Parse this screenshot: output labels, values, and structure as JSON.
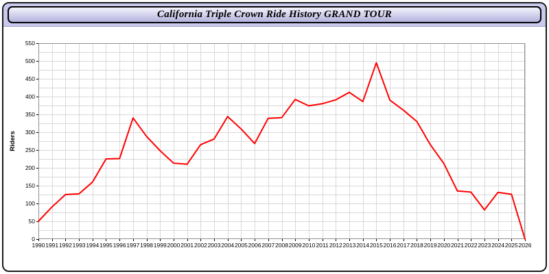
{
  "title": "California Triple Crown Ride History GRAND TOUR",
  "colors": {
    "strip_background": "#c9c9ee",
    "titlebar_gradient_top": "#f4f4fd",
    "titlebar_gradient_bottom": "#b2b2dd",
    "line": "#ff0000",
    "grid": "#d8d8d8",
    "plot_border": "#8f8f8f",
    "axis_text": "#000000"
  },
  "chart_data": {
    "type": "line",
    "title": "California Triple Crown Ride History GRAND TOUR",
    "xlabel": "",
    "ylabel": "Riders",
    "ylim": [
      0,
      550
    ],
    "y_tick_step": 50,
    "y_grid_step": 25,
    "grid": true,
    "legend_position": "none",
    "x": [
      1990,
      1991,
      1992,
      1993,
      1994,
      1995,
      1996,
      1997,
      1998,
      1999,
      2000,
      2001,
      2002,
      2003,
      2004,
      2005,
      2006,
      2007,
      2008,
      2009,
      2010,
      2011,
      2012,
      2013,
      2014,
      2015,
      2016,
      2017,
      2018,
      2019,
      2020,
      2021,
      2022,
      2023,
      2024,
      2025,
      2026
    ],
    "values": [
      50,
      90,
      125,
      127,
      160,
      225,
      226,
      340,
      288,
      248,
      213,
      210,
      265,
      281,
      344,
      309,
      268,
      339,
      341,
      392,
      374,
      380,
      391,
      412,
      386,
      495,
      390,
      362,
      330,
      265,
      212,
      135,
      132,
      82,
      131,
      126,
      0
    ]
  }
}
